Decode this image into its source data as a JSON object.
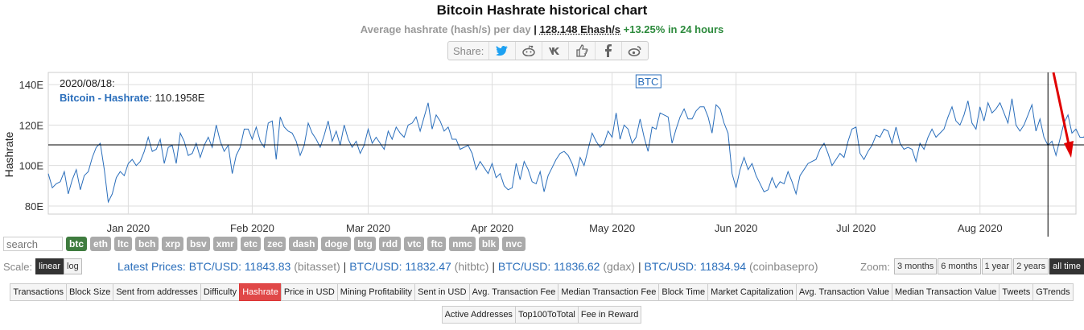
{
  "header": {
    "title": "Bitcoin Hashrate historical chart",
    "subtitle_label": "Average hashrate (hash/s) per day",
    "subtitle_sep": "|",
    "current_value": "128.148 Ehash/s",
    "change": "+13.25%",
    "change_suffix": "in 24 hours"
  },
  "share": {
    "label": "Share:",
    "icons": [
      "twitter-icon",
      "reddit-icon",
      "vk-icon",
      "like-icon",
      "facebook-icon",
      "weibo-icon"
    ]
  },
  "colors": {
    "line": "#2a6ebb",
    "accent": "#e04848",
    "active_coin": "#3f7c3f",
    "arrow": "#e00000"
  },
  "tooltip": {
    "date": "2020/08/18:",
    "series_label": "Bitcoin - Hashrate",
    "value": "110.1958E"
  },
  "chart_data": {
    "type": "line",
    "ylabel": "Hashrate",
    "y_ticks": [
      "80E",
      "100E",
      "120E",
      "140E"
    ],
    "ylim": [
      76,
      146
    ],
    "x_ticks": [
      "Jan 2020",
      "Feb 2020",
      "Mar 2020",
      "Apr 2020",
      "May 2020",
      "Jun 2020",
      "Jul 2020",
      "Aug 2020"
    ],
    "x_start": "2019-12-12",
    "x_end": "2020-08-25",
    "annotation": {
      "label": "BTC",
      "date": "2020-05-10"
    },
    "crosshair": {
      "date": "2020-08-18",
      "value": 110.2
    },
    "grid": true,
    "series": [
      {
        "name": "Bitcoin - Hashrate",
        "values": [
          96,
          89,
          91,
          92,
          97,
          86,
          93,
          98,
          88,
          95,
          97,
          104,
          109,
          111,
          98,
          82,
          86,
          94,
          97,
          95,
          101,
          103,
          100,
          102,
          107,
          114,
          107,
          108,
          113,
          101,
          109,
          110,
          101,
          116,
          112,
          105,
          106,
          111,
          104,
          110,
          114,
          109,
          120,
          112,
          107,
          110,
          96,
          105,
          109,
          118,
          118,
          113,
          119,
          112,
          109,
          121,
          122,
          103,
          124,
          119,
          117,
          116,
          112,
          105,
          110,
          121,
          116,
          113,
          109,
          115,
          122,
          112,
          117,
          110,
          120,
          113,
          109,
          112,
          106,
          110,
          118,
          111,
          114,
          111,
          108,
          117,
          113,
          119,
          116,
          114,
          120,
          121,
          124,
          117,
          124,
          131,
          118,
          125,
          122,
          117,
          119,
          113,
          113,
          108,
          109,
          110,
          106,
          98,
          102,
          99,
          96,
          101,
          94,
          96,
          90,
          88,
          89,
          101,
          93,
          102,
          98,
          92,
          91,
          97,
          87,
          95,
          99,
          103,
          106,
          107,
          105,
          101,
          95,
          104,
          100,
          108,
          116,
          112,
          109,
          111,
          117,
          114,
          126,
          113,
          120,
          118,
          111,
          114,
          123,
          114,
          107,
          119,
          118,
          126,
          125,
          124,
          111,
          118,
          124,
          128,
          123,
          123,
          127,
          129,
          129,
          124,
          116,
          130,
          128,
          121,
          116,
          96,
          89,
          98,
          104,
          98,
          101,
          95,
          91,
          87,
          88,
          94,
          89,
          92,
          91,
          97,
          92,
          86,
          95,
          98,
          101,
          102,
          103,
          108,
          111,
          106,
          100,
          103,
          106,
          104,
          112,
          118,
          119,
          106,
          103,
          107,
          110,
          115,
          114,
          118,
          117,
          111,
          119,
          111,
          108,
          109,
          108,
          102,
          111,
          108,
          114,
          118,
          114,
          116,
          118,
          124,
          129,
          122,
          120,
          125,
          132,
          121,
          118,
          129,
          122,
          131,
          126,
          128,
          131,
          126,
          121,
          133,
          120,
          117,
          120,
          125,
          130,
          117,
          123,
          114,
          110,
          112,
          105,
          113,
          121,
          125,
          116,
          118,
          114,
          114,
          121,
          127,
          129,
          140,
          131,
          126,
          127,
          119,
          118,
          125,
          119,
          124,
          130,
          121,
          122,
          126,
          122,
          127,
          133,
          129,
          130,
          136,
          128,
          133,
          130,
          110,
          114,
          125
        ]
      }
    ]
  },
  "coins": {
    "search_placeholder": "search",
    "items": [
      "btc",
      "eth",
      "ltc",
      "bch",
      "xrp",
      "bsv",
      "xmr",
      "etc",
      "zec",
      "dash",
      "doge",
      "btg",
      "rdd",
      "vtc",
      "ftc",
      "nmc",
      "blk",
      "nvc"
    ]
  },
  "scale": {
    "label": "Scale:",
    "linear": "linear",
    "log": "log"
  },
  "prices": {
    "lead": "Latest Prices: ",
    "items": [
      {
        "pair": "BTC/USD: 11843.83",
        "ex": "(bitasset)"
      },
      {
        "pair": "BTC/USD: 11832.47",
        "ex": "(hitbtc)"
      },
      {
        "pair": "BTC/USD: 11836.62",
        "ex": "(gdax)"
      },
      {
        "pair": "BTC/USD: 11834.94",
        "ex": "(coinbasepro)"
      }
    ]
  },
  "zoom": {
    "label": "Zoom:",
    "items": [
      "3 months",
      "6 months",
      "1 year",
      "2 years",
      "all time"
    ]
  },
  "tabs_row1": [
    "Transactions",
    "Block Size",
    "Sent from addresses",
    "Difficulty",
    "Hashrate",
    "Price in USD",
    "Mining Profitability",
    "Sent in USD",
    "Avg. Transaction Fee",
    "Median Transaction Fee",
    "Block Time",
    "Market Capitalization",
    "Avg. Transaction Value",
    "Median Transaction Value",
    "Tweets",
    "GTrends"
  ],
  "tabs_row2": [
    "Active Addresses",
    "Top100ToTotal",
    "Fee in Reward"
  ]
}
